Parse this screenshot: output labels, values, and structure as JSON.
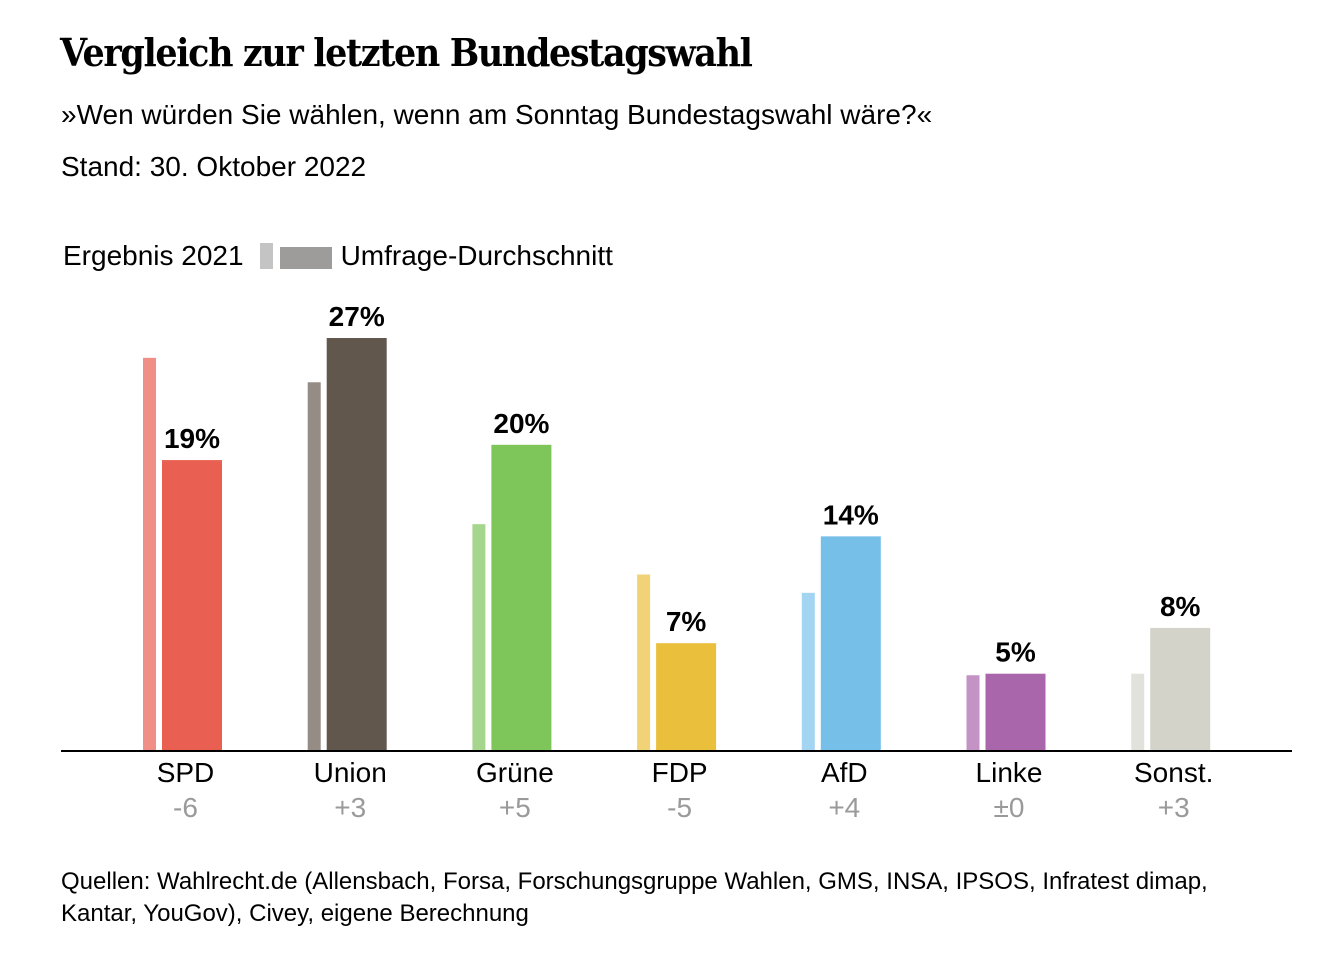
{
  "header": {
    "title": "Vergleich zur letzten Bundestagswahl",
    "subtitle": "»Wen würden Sie wählen, wenn am Sonntag Bundestagswahl wäre?«",
    "stand": "Stand: 30. Oktober 2022"
  },
  "legend": {
    "result_label": "Ergebnis 2021",
    "poll_label": "Umfrage-Durchschnitt"
  },
  "footer": {
    "source": "Quellen: Wahlrecht.de (Allensbach, Forsa, Forschungsgruppe Wahlen, GMS, INSA, IPSOS, Infratest dimap, Kantar, YouGov), Civey, eigene Berechnung"
  },
  "chart_data": {
    "type": "bar",
    "title": "Vergleich zur letzten Bundestagswahl",
    "subtitle": "»Wen würden Sie wählen, wenn am Sonntag Bundestagswahl wäre?«",
    "xlabel": "",
    "ylabel": "",
    "ylim": [
      0,
      27
    ],
    "grid": false,
    "legend_position": "top-left",
    "categories": [
      "SPD",
      "Union",
      "Grüne",
      "FDP",
      "AfD",
      "Linke",
      "Sonst."
    ],
    "series": [
      {
        "name": "Ergebnis 2021",
        "values": [
          25.7,
          24.1,
          14.8,
          11.5,
          10.3,
          4.9,
          5.0
        ]
      },
      {
        "name": "Umfrage-Durchschnitt",
        "values": [
          19,
          27,
          20,
          7,
          14,
          5,
          8
        ]
      }
    ],
    "value_labels": [
      "19%",
      "27%",
      "20%",
      "7%",
      "14%",
      "5%",
      "8%"
    ],
    "differences": [
      "-6",
      "+3",
      "+5",
      "-5",
      "+4",
      "±0",
      "+3"
    ],
    "colors_poll": [
      "#e96052",
      "#61574d",
      "#7ec55a",
      "#eabf3c",
      "#76bfe8",
      "#a966ab",
      "#d3d3ca"
    ],
    "colors_result": [
      "#f08f86",
      "#958c85",
      "#a6d68d",
      "#f2d276",
      "#a3d4f1",
      "#c493c6",
      "#e2e2dd"
    ]
  }
}
